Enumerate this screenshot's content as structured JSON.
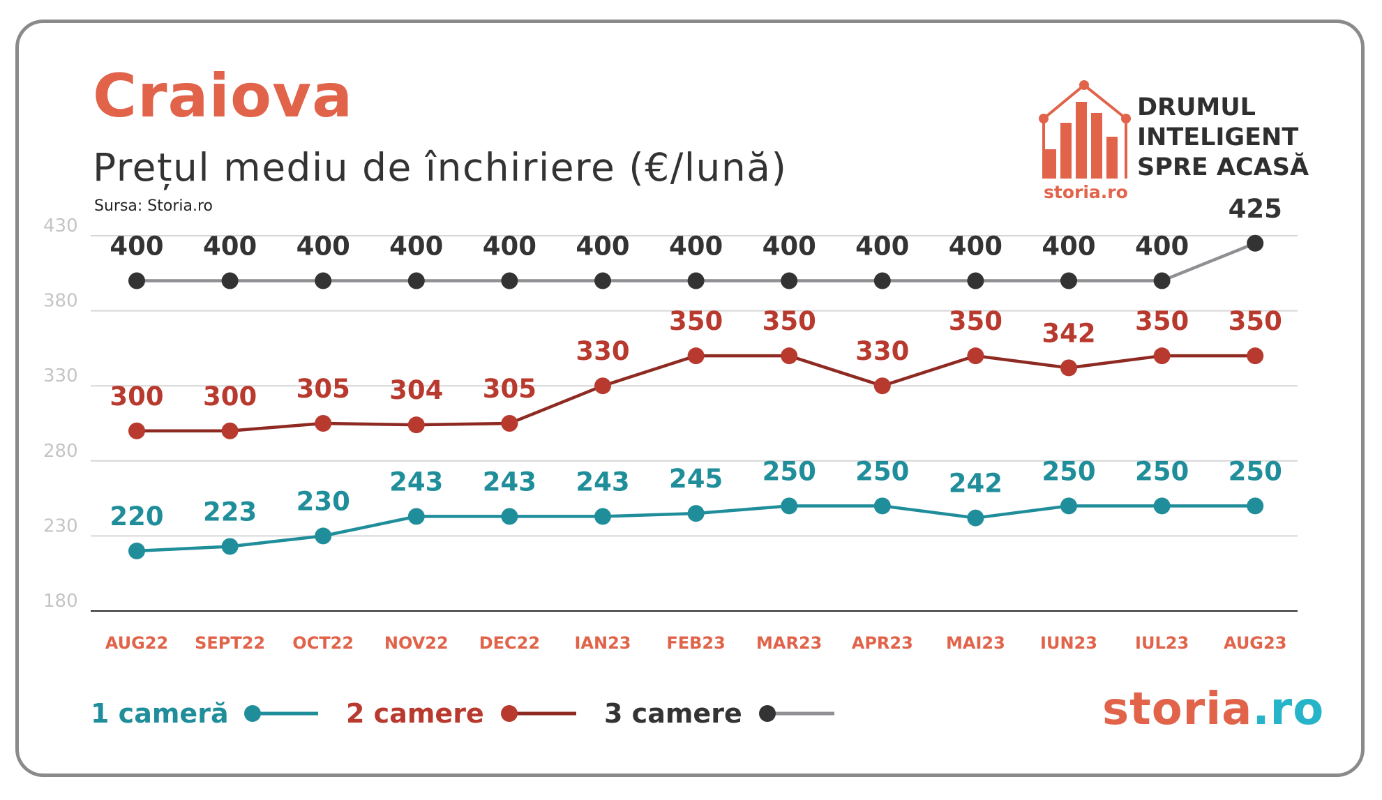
{
  "header": {
    "title": "Craiova",
    "subtitle": "Prețul mediu de închiriere (€/lună)",
    "source": "Sursa: Storia.ro"
  },
  "brand": {
    "line1": "DRUMUL",
    "line2": "INTELIGENT",
    "line3": "SPRE ACASĂ",
    "small_logo": "storia.ro",
    "logo_main": "storia",
    "logo_suffix": ".ro"
  },
  "colors": {
    "accent": "#e0634a",
    "teal": "#1f8e9a",
    "red": "#b8392e",
    "dark": "#333333",
    "gray_line": "#8f8f94",
    "grid": "#d6d6d6",
    "tick": "#c4c4c4",
    "logo_ro": "#27b4c8"
  },
  "chart_data": {
    "type": "line",
    "categories": [
      "AUG22",
      "SEPT22",
      "OCT22",
      "NOV22",
      "DEC22",
      "IAN23",
      "FEB23",
      "MAR23",
      "APR23",
      "MAI23",
      "IUN23",
      "IUL23",
      "AUG23"
    ],
    "ylim": [
      180,
      430
    ],
    "yticks": [
      180,
      230,
      280,
      330,
      380,
      430
    ],
    "grid": true,
    "legend": "bottom",
    "series": [
      {
        "name": "1 cameră",
        "color": "#1f8e9a",
        "line_color": "#1f8e9a",
        "values": [
          220,
          223,
          230,
          243,
          243,
          243,
          245,
          250,
          250,
          242,
          250,
          250,
          250
        ]
      },
      {
        "name": "2 camere",
        "color": "#b8392e",
        "line_color": "#8e2a22",
        "values": [
          300,
          300,
          305,
          304,
          305,
          330,
          350,
          350,
          330,
          350,
          342,
          350,
          350
        ]
      },
      {
        "name": "3 camere",
        "color": "#333333",
        "line_color": "#8f8f94",
        "values": [
          400,
          400,
          400,
          400,
          400,
          400,
          400,
          400,
          400,
          400,
          400,
          400,
          425
        ]
      }
    ]
  }
}
